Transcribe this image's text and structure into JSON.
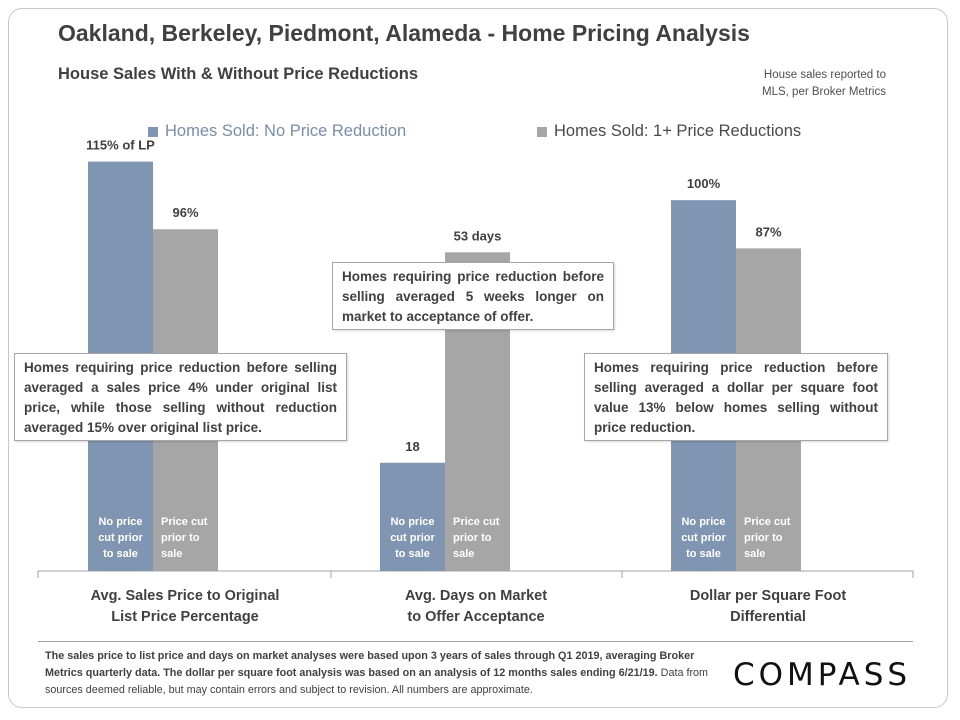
{
  "title": "Oakland, Berkeley, Piedmont, Alameda - Home Pricing Analysis",
  "subtitle": "House Sales With & Without Price Reductions",
  "source_note_line1": "House sales reported to",
  "source_note_line2": "MLS, per Broker Metrics",
  "colors": {
    "no_reduction": "#8095b2",
    "reduction": "#a6a6a6",
    "text": "#404040",
    "axis": "#a0a0a0"
  },
  "chart_data": {
    "type": "bar",
    "categories": [
      [
        "Avg. Sales Price to Original",
        "List Price Percentage"
      ],
      [
        "Avg. Days on Market",
        "to Offer Acceptance"
      ],
      [
        "Dollar per Square Foot",
        "Differential"
      ]
    ],
    "series": [
      {
        "name": "Homes Sold: No Price Reduction",
        "values": [
          115,
          18,
          100
        ],
        "labels": [
          "115% of LP",
          "18",
          "100%"
        ],
        "bar_text": [
          "No price",
          "cut prior",
          "to sale"
        ]
      },
      {
        "name": "Homes Sold: 1+ Price Reductions",
        "values": [
          96,
          53,
          87
        ],
        "labels": [
          "96%",
          "53 days",
          "87%"
        ],
        "bar_text": [
          "Price cut",
          "prior to",
          "sale"
        ]
      }
    ],
    "panel_ylim": [
      [
        0,
        125
      ],
      [
        0,
        74
      ],
      [
        0,
        120
      ]
    ],
    "grid": false,
    "legend": "top"
  },
  "callouts": [
    "Homes requiring price reduction before selling averaged a sales price 4% under original list price, while those selling without reduction averaged 15% over original list price.",
    "Homes requiring price reduction before selling averaged 5 weeks longer on market to acceptance of offer.",
    "Homes requiring price reduction before selling averaged a dollar per square foot value 13% below homes selling without price reduction."
  ],
  "footer_bold": "The sales price to list price and days on market analyses were based upon 3 years of sales through Q1 2019, averaging Broker Metrics quarterly data. The dollar per square foot analysis was based on an analysis of 12 months sales ending 6/21/19.",
  "footer_normal": " Data from sources deemed reliable, but may contain errors and subject to revision. All numbers are approximate.",
  "logo": "COMPASS"
}
